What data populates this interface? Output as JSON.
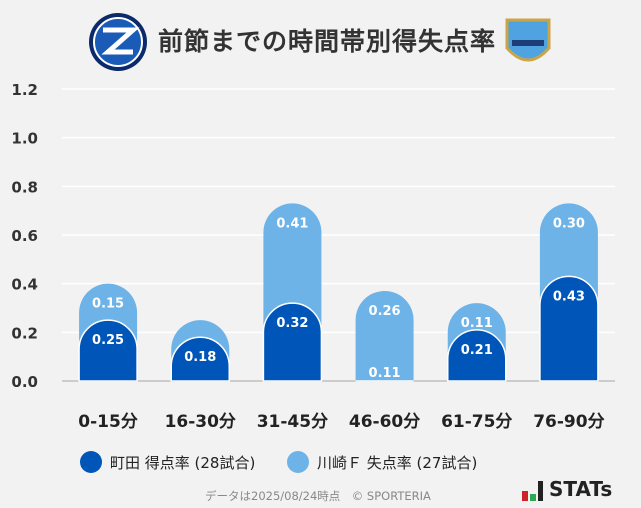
{
  "chart_data": {
    "type": "bar",
    "stacked": true,
    "title": "前節までの時間帯別得失点率",
    "categories": [
      "0-15分",
      "16-30分",
      "31-45分",
      "46-60分",
      "61-75分",
      "76-90分"
    ],
    "series": [
      {
        "name": "町田 得点率 (28試合)",
        "color": "#0055b8",
        "values": [
          0.25,
          0.18,
          0.32,
          0.11,
          0.21,
          0.43
        ],
        "labels": [
          "0.25",
          "0.18",
          "0.32",
          "0.11",
          "0.21",
          "0.43"
        ]
      },
      {
        "name": "川崎Ｆ 失点率 (27試合)",
        "color": "#6db3e8",
        "values": [
          0.15,
          0.07,
          0.41,
          0.26,
          0.11,
          0.3
        ],
        "labels": [
          "0.15",
          "",
          "0.41",
          "0.26",
          "0.11",
          "0.30"
        ]
      }
    ],
    "yticks": [
      "0.0",
      "0.2",
      "0.4",
      "0.6",
      "0.8",
      "1.0",
      "1.2"
    ],
    "ylim": [
      0,
      1.2
    ],
    "grid": true,
    "legend": "bottom"
  },
  "footer": "データは2025/08/24時点　© SPORTERIA",
  "brand": "STATs",
  "logos": {
    "left": "ZELVIA",
    "right": "KAWASAKI"
  }
}
